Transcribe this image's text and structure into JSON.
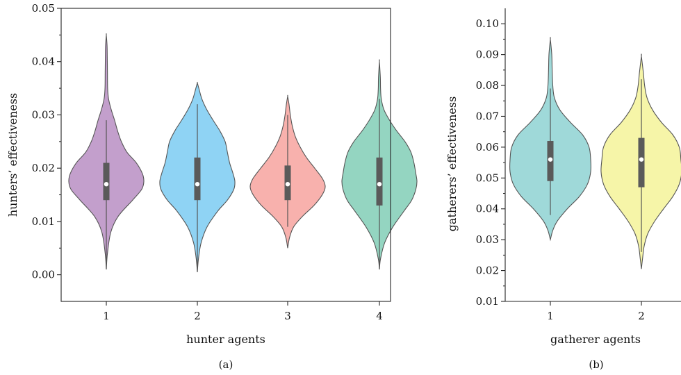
{
  "chart_data": [
    {
      "type": "violin",
      "panel_label": "(a)",
      "xlabel": "hunter agents",
      "ylabel": "hunters’ effectiveness",
      "ylim": [
        -0.005,
        0.05
      ],
      "yticks": [
        "0.00",
        "0.01",
        "0.02",
        "0.03",
        "0.04",
        "0.05"
      ],
      "categories": [
        "1",
        "2",
        "3",
        "4"
      ],
      "violins": [
        {
          "category": "1",
          "color": "#c39fcc",
          "min": 0.001,
          "max": 0.045,
          "q1": 0.014,
          "median": 0.017,
          "q3": 0.021,
          "whisker_low": 0.001,
          "whisker_high": 0.029,
          "profile": [
            [
              0.001,
              0.0
            ],
            [
              0.004,
              0.03
            ],
            [
              0.008,
              0.12
            ],
            [
              0.011,
              0.32
            ],
            [
              0.014,
              0.7
            ],
            [
              0.016,
              0.94
            ],
            [
              0.0175,
              1.0
            ],
            [
              0.019,
              0.96
            ],
            [
              0.021,
              0.8
            ],
            [
              0.023,
              0.55
            ],
            [
              0.025,
              0.4
            ],
            [
              0.027,
              0.3
            ],
            [
              0.029,
              0.22
            ],
            [
              0.031,
              0.13
            ],
            [
              0.033,
              0.06
            ],
            [
              0.035,
              0.035
            ],
            [
              0.038,
              0.03
            ],
            [
              0.041,
              0.025
            ],
            [
              0.043,
              0.02
            ],
            [
              0.045,
              0.0
            ]
          ]
        },
        {
          "category": "2",
          "color": "#8fd3f4",
          "min": 0.0005,
          "max": 0.036,
          "q1": 0.014,
          "median": 0.017,
          "q3": 0.022,
          "whisker_low": 0.0005,
          "whisker_high": 0.032,
          "profile": [
            [
              0.0005,
              0.0
            ],
            [
              0.003,
              0.03
            ],
            [
              0.006,
              0.1
            ],
            [
              0.009,
              0.26
            ],
            [
              0.012,
              0.55
            ],
            [
              0.014,
              0.8
            ],
            [
              0.016,
              0.97
            ],
            [
              0.0175,
              1.0
            ],
            [
              0.019,
              0.95
            ],
            [
              0.021,
              0.86
            ],
            [
              0.023,
              0.8
            ],
            [
              0.025,
              0.74
            ],
            [
              0.027,
              0.6
            ],
            [
              0.029,
              0.42
            ],
            [
              0.031,
              0.25
            ],
            [
              0.033,
              0.12
            ],
            [
              0.035,
              0.04
            ],
            [
              0.036,
              0.0
            ]
          ]
        },
        {
          "category": "3",
          "color": "#f8b1ad",
          "min": 0.005,
          "max": 0.0335,
          "q1": 0.014,
          "median": 0.017,
          "q3": 0.0205,
          "whisker_low": 0.009,
          "whisker_high": 0.03,
          "profile": [
            [
              0.005,
              0.0
            ],
            [
              0.007,
              0.05
            ],
            [
              0.009,
              0.16
            ],
            [
              0.011,
              0.4
            ],
            [
              0.013,
              0.7
            ],
            [
              0.015,
              0.92
            ],
            [
              0.0165,
              1.0
            ],
            [
              0.018,
              0.93
            ],
            [
              0.02,
              0.72
            ],
            [
              0.022,
              0.5
            ],
            [
              0.024,
              0.33
            ],
            [
              0.026,
              0.2
            ],
            [
              0.028,
              0.12
            ],
            [
              0.03,
              0.07
            ],
            [
              0.032,
              0.035
            ],
            [
              0.0335,
              0.0
            ]
          ]
        },
        {
          "category": "4",
          "color": "#94d5c1",
          "min": 0.001,
          "max": 0.04,
          "q1": 0.013,
          "median": 0.017,
          "q3": 0.022,
          "whisker_low": 0.001,
          "whisker_high": 0.033,
          "profile": [
            [
              0.001,
              0.0
            ],
            [
              0.003,
              0.03
            ],
            [
              0.006,
              0.14
            ],
            [
              0.009,
              0.36
            ],
            [
              0.012,
              0.66
            ],
            [
              0.014,
              0.86
            ],
            [
              0.016,
              0.97
            ],
            [
              0.0175,
              1.0
            ],
            [
              0.019,
              0.97
            ],
            [
              0.021,
              0.92
            ],
            [
              0.023,
              0.84
            ],
            [
              0.025,
              0.68
            ],
            [
              0.027,
              0.46
            ],
            [
              0.029,
              0.27
            ],
            [
              0.031,
              0.12
            ],
            [
              0.033,
              0.05
            ],
            [
              0.035,
              0.03
            ],
            [
              0.037,
              0.025
            ],
            [
              0.04,
              0.0
            ]
          ]
        }
      ]
    },
    {
      "type": "violin",
      "panel_label": "(b)",
      "xlabel": "gatherer agents",
      "ylabel": "gatherers’ effectiveness",
      "ylim": [
        0.01,
        0.105
      ],
      "yticks": [
        "0.01",
        "0.02",
        "0.03",
        "0.04",
        "0.05",
        "0.06",
        "0.07",
        "0.08",
        "0.09",
        "0.10"
      ],
      "categories": [
        "1",
        "2"
      ],
      "violins": [
        {
          "category": "1",
          "color": "#9fd9d9",
          "min": 0.03,
          "max": 0.095,
          "q1": 0.049,
          "median": 0.056,
          "q3": 0.062,
          "whisker_low": 0.038,
          "whisker_high": 0.079,
          "profile": [
            [
              0.03,
              0.0
            ],
            [
              0.033,
              0.06
            ],
            [
              0.036,
              0.17
            ],
            [
              0.04,
              0.42
            ],
            [
              0.044,
              0.72
            ],
            [
              0.048,
              0.92
            ],
            [
              0.052,
              1.0
            ],
            [
              0.056,
              1.0
            ],
            [
              0.06,
              0.96
            ],
            [
              0.064,
              0.8
            ],
            [
              0.068,
              0.5
            ],
            [
              0.072,
              0.24
            ],
            [
              0.076,
              0.1
            ],
            [
              0.08,
              0.06
            ],
            [
              0.085,
              0.045
            ],
            [
              0.09,
              0.035
            ],
            [
              0.095,
              0.0
            ]
          ]
        },
        {
          "category": "2",
          "color": "#f6f5a8",
          "min": 0.0205,
          "max": 0.0895,
          "q1": 0.047,
          "median": 0.056,
          "q3": 0.063,
          "whisker_low": 0.026,
          "whisker_high": 0.082,
          "profile": [
            [
              0.0205,
              0.0
            ],
            [
              0.024,
              0.03
            ],
            [
              0.028,
              0.07
            ],
            [
              0.032,
              0.16
            ],
            [
              0.036,
              0.33
            ],
            [
              0.04,
              0.55
            ],
            [
              0.044,
              0.78
            ],
            [
              0.048,
              0.94
            ],
            [
              0.052,
              1.0
            ],
            [
              0.056,
              0.98
            ],
            [
              0.06,
              0.94
            ],
            [
              0.064,
              0.78
            ],
            [
              0.068,
              0.5
            ],
            [
              0.072,
              0.28
            ],
            [
              0.076,
              0.14
            ],
            [
              0.08,
              0.08
            ],
            [
              0.084,
              0.05
            ],
            [
              0.0895,
              0.0
            ]
          ]
        }
      ]
    }
  ]
}
